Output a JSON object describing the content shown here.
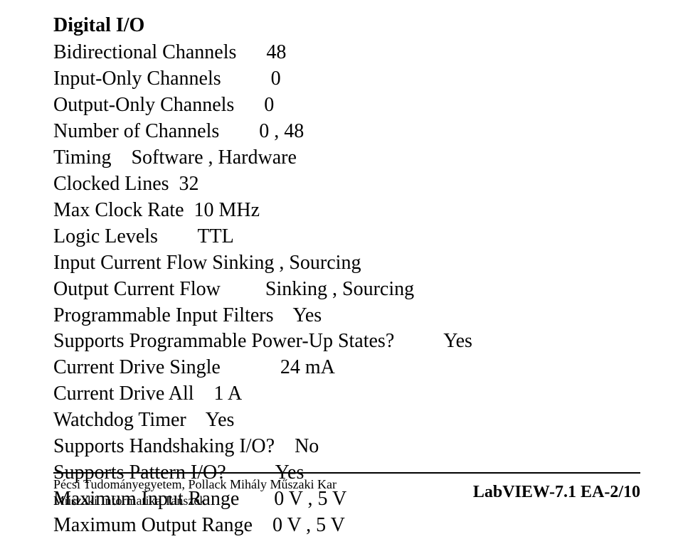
{
  "title": "Digital I/O",
  "rows": [
    {
      "label": "Bidirectional Channels",
      "value": "48",
      "gap": "      "
    },
    {
      "label": "Input-Only Channels",
      "value": "0",
      "gap": "          "
    },
    {
      "label": "Output-Only Channels",
      "value": "0",
      "gap": "      "
    },
    {
      "label": "Number of Channels",
      "value": "0 , 48",
      "gap": "        "
    },
    {
      "label": "Timing    Software , Hardware",
      "value": "",
      "gap": ""
    },
    {
      "label": "Clocked Lines",
      "value": "32",
      "gap": "  "
    },
    {
      "label": "Max Clock Rate",
      "value": "10 MHz",
      "gap": "  "
    },
    {
      "label": "Logic Levels",
      "value": "TTL",
      "gap": "        "
    },
    {
      "label": "Input Current Flow Sinking , Sourcing",
      "value": "",
      "gap": ""
    },
    {
      "label": "Output Current Flow",
      "value": "Sinking , Sourcing",
      "gap": "         "
    },
    {
      "label": "Programmable Input Filters    Yes",
      "value": "",
      "gap": ""
    },
    {
      "label": "Supports Programmable Power-Up States?",
      "value": "Yes",
      "gap": "          "
    },
    {
      "label": "Current Drive Single",
      "value": "24 mA",
      "gap": "            "
    },
    {
      "label": "Current Drive All    1 A",
      "value": "",
      "gap": ""
    },
    {
      "label": "Watchdog Timer    Yes",
      "value": "",
      "gap": ""
    },
    {
      "label": "Supports Handshaking I/O?    No",
      "value": "",
      "gap": ""
    },
    {
      "label": "Supports Pattern I/O?",
      "value": "Yes",
      "gap": "          "
    },
    {
      "label": "Maximum Input Range",
      "value": "0 V , 5 V",
      "gap": "       "
    },
    {
      "label": "Maximum Output Range",
      "value": "0 V , 5 V",
      "gap": "    "
    }
  ],
  "footer": {
    "left_line1": "Pécsi Tudományegyetem, Pollack Mihály Műszaki Kar",
    "left_line2": "Műszaki Informatika Tanszék",
    "right": "LabVIEW-7.1 EA-2/10"
  },
  "colors": {
    "text": "#000000",
    "background": "#ffffff",
    "hr": "#000000"
  }
}
